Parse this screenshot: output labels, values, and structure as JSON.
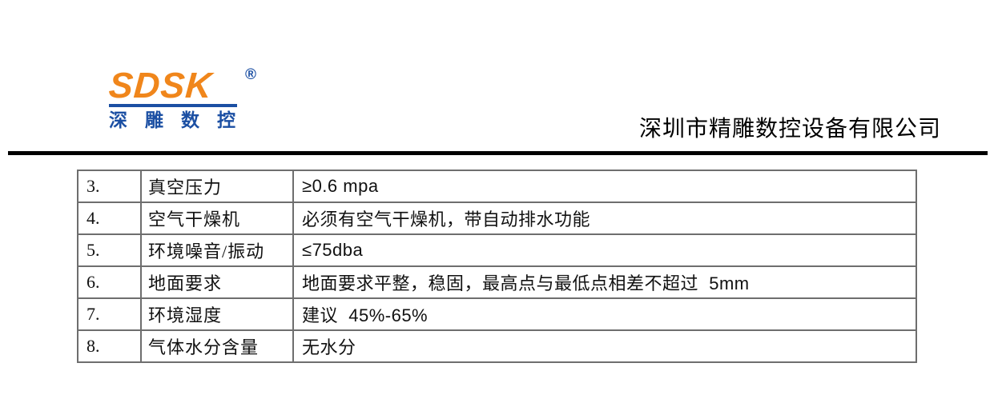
{
  "header": {
    "logo": {
      "wordmark": "SDSK",
      "registered_mark": "®",
      "subtext_chars": {
        "c0": "深",
        "c1": "雕",
        "c2": "数",
        "c3": "控"
      },
      "orange_color": "#f0861b",
      "blue_color": "#1b4fa3"
    },
    "company_name": "深圳市精雕数控设备有限公司",
    "rule_color": "#000000"
  },
  "table": {
    "border_color": "#6e6e6e",
    "rows": [
      {
        "num": "3.",
        "label": "真空压力",
        "value": "≥0.6 mpa"
      },
      {
        "num": "4.",
        "label": "空气干燥机",
        "value": "必须有空气干燥机，带自动排水功能"
      },
      {
        "num": "5.",
        "label": "环境噪音/振动",
        "value": "≤75dba"
      },
      {
        "num": "6.",
        "label": "地面要求",
        "value": "地面要求平整，稳固，最高点与最低点相差不超过  5mm"
      },
      {
        "num": "7.",
        "label": "环境湿度",
        "value": "建议  45%-65%"
      },
      {
        "num": "8.",
        "label": "气体水分含量",
        "value": "无水分"
      }
    ]
  }
}
